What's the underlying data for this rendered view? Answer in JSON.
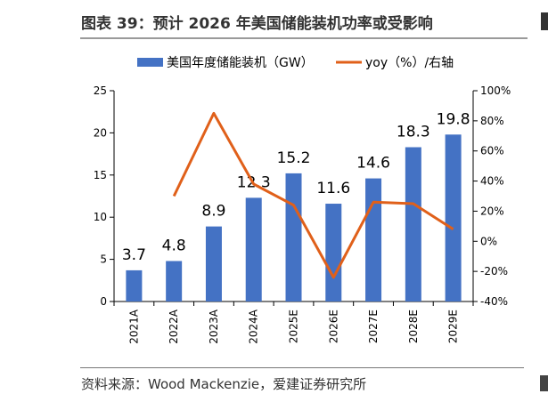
{
  "header": {
    "title": "图表 39：预计 2026 年美国储能装机功率或受影响"
  },
  "footer": {
    "source": "资料来源：Wood Mackenzie，爱建证券研究所"
  },
  "colors": {
    "bar": "#4472C4",
    "line": "#E0601A",
    "axis": "#000000"
  },
  "chart_data": {
    "type": "bar",
    "categories": [
      "2021A",
      "2022A",
      "2023A",
      "2024A",
      "2025E",
      "2026E",
      "2027E",
      "2028E",
      "2029E"
    ],
    "legend_placement": "top",
    "grid": false,
    "series": [
      {
        "name": "美国年度储能装机（GW）",
        "type": "bar",
        "axis": "left",
        "values": [
          3.7,
          4.8,
          8.9,
          12.3,
          15.2,
          11.6,
          14.6,
          18.3,
          19.8
        ],
        "labels": [
          "3.7",
          "4.8",
          "8.9",
          "12.3",
          "15.2",
          "11.6",
          "14.6",
          "18.3",
          "19.8"
        ]
      },
      {
        "name": "yoy（%）/右轴",
        "type": "line",
        "axis": "right",
        "values": [
          null,
          30,
          85,
          38,
          24,
          -24,
          26,
          25,
          8
        ]
      }
    ],
    "y_left": {
      "min": 0,
      "max": 25,
      "ticks": [
        "0",
        "5",
        "10",
        "15",
        "20",
        "25"
      ]
    },
    "y_right": {
      "min": -40,
      "max": 100,
      "ticks": [
        "-40%",
        "-20%",
        "0%",
        "20%",
        "40%",
        "60%",
        "80%",
        "100%"
      ]
    }
  }
}
